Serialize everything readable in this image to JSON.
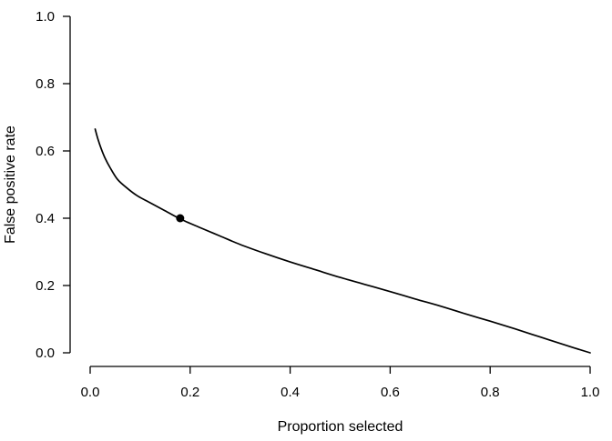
{
  "figure": {
    "background": "#ffffff",
    "foreground": "#000000"
  },
  "chart_data": {
    "type": "line",
    "title": "",
    "xlabel": "Proportion selected",
    "ylabel": "False positive rate",
    "xlim": [
      0,
      1
    ],
    "ylim": [
      0,
      1
    ],
    "grid": false,
    "legend": "none",
    "axis_color": "#000000",
    "x_ticks": {
      "values": [
        0.0,
        0.2,
        0.4,
        0.6,
        0.8,
        1.0
      ],
      "labels": [
        "0.0",
        "0.2",
        "0.4",
        "0.6",
        "0.8",
        "1.0"
      ]
    },
    "y_ticks": {
      "values": [
        0.0,
        0.2,
        0.4,
        0.6,
        0.8,
        1.0
      ],
      "labels": [
        "0.0",
        "0.2",
        "0.4",
        "0.6",
        "0.8",
        "1.0"
      ]
    },
    "series": [
      {
        "name": "false-positive-rate-curve",
        "color": "#000000",
        "line_width": 1.7,
        "x": [
          0.01,
          0.015,
          0.022,
          0.03,
          0.04,
          0.055,
          0.075,
          0.095,
          0.12,
          0.15,
          0.18,
          0.22,
          0.26,
          0.3,
          0.35,
          0.4,
          0.45,
          0.5,
          0.55,
          0.6,
          0.65,
          0.7,
          0.75,
          0.8,
          0.85,
          0.9,
          0.95,
          1.0
        ],
        "y": [
          0.665,
          0.638,
          0.607,
          0.578,
          0.55,
          0.515,
          0.488,
          0.466,
          0.446,
          0.422,
          0.398,
          0.372,
          0.347,
          0.322,
          0.295,
          0.27,
          0.247,
          0.224,
          0.203,
          0.182,
          0.16,
          0.139,
          0.116,
          0.094,
          0.071,
          0.047,
          0.023,
          0.0
        ]
      }
    ],
    "markers": [
      {
        "name": "highlighted-point",
        "shape": "filled-circle",
        "color": "#000000",
        "x": 0.18,
        "y": 0.4
      }
    ]
  }
}
